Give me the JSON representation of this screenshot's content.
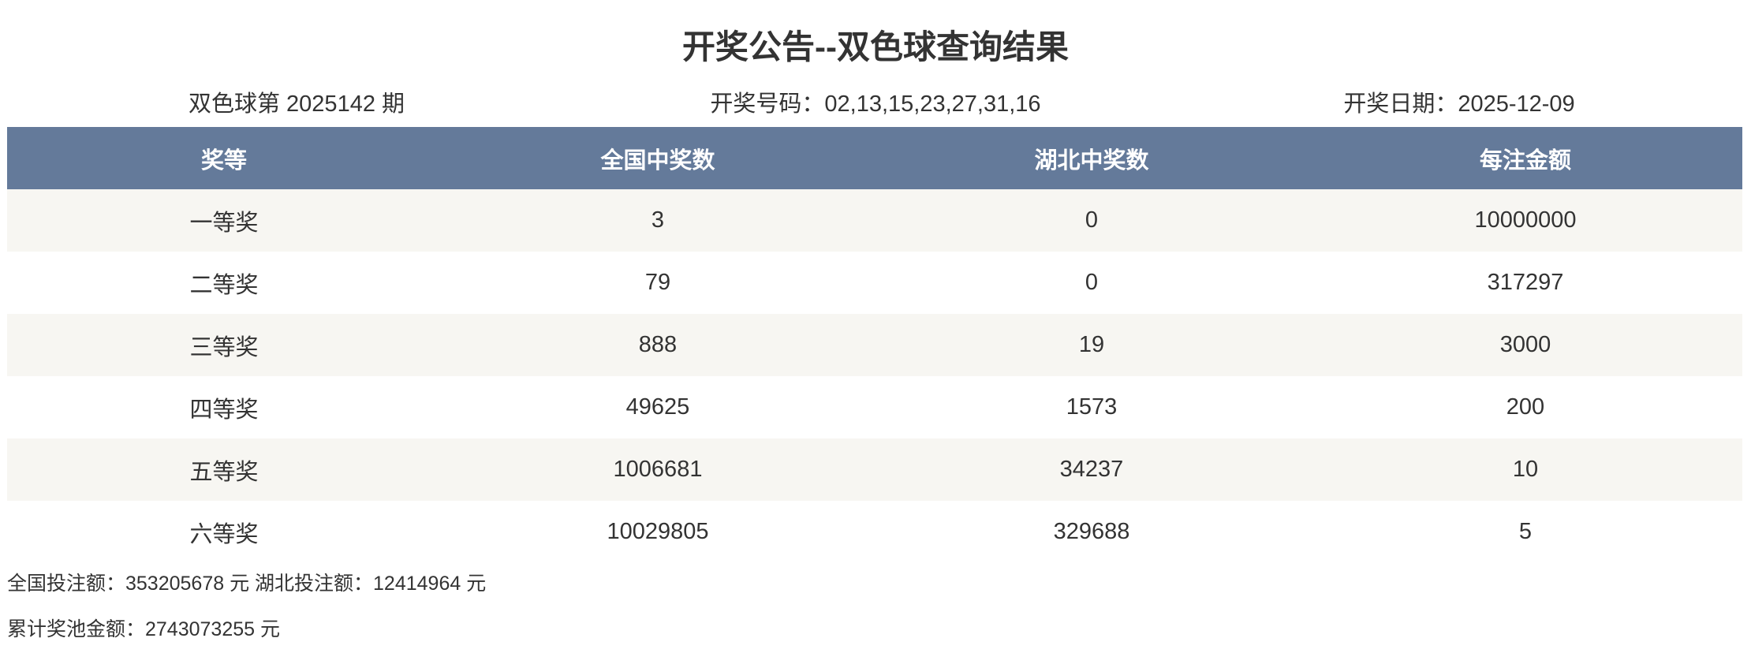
{
  "title": "开奖公告--双色球查询结果",
  "info": {
    "issue": "双色球第 2025142 期",
    "numbers": "开奖号码：02,13,15,23,27,31,16",
    "date": "开奖日期：2025-12-09"
  },
  "table": {
    "headers": [
      "奖等",
      "全国中奖数",
      "湖北中奖数",
      "每注金额"
    ],
    "rows": [
      [
        "一等奖",
        "3",
        "0",
        "10000000"
      ],
      [
        "二等奖",
        "79",
        "0",
        "317297"
      ],
      [
        "三等奖",
        "888",
        "19",
        "3000"
      ],
      [
        "四等奖",
        "49625",
        "1573",
        "200"
      ],
      [
        "五等奖",
        "1006681",
        "34237",
        "10"
      ],
      [
        "六等奖",
        "10029805",
        "329688",
        "5"
      ]
    ]
  },
  "footer": {
    "sales": "全国投注额：353205678 元 湖北投注额：12414964 元",
    "pool": "累计奖池金额：2743073255 元"
  },
  "colors": {
    "header_bg": "#647a9a",
    "stripe_bg": "#f7f6f2"
  }
}
